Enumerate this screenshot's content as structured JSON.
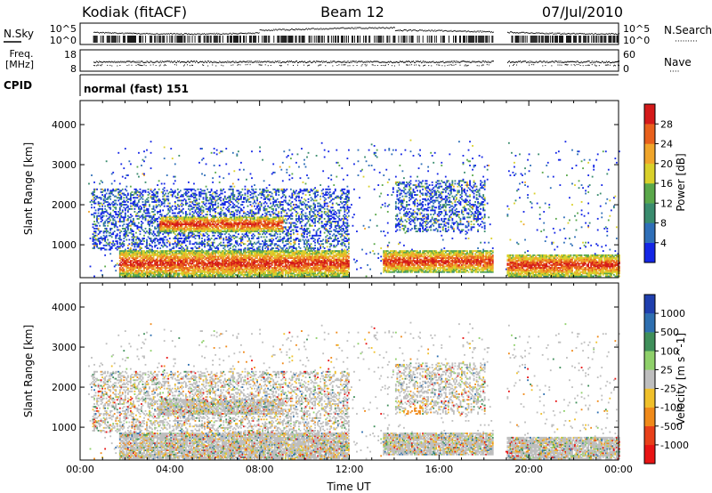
{
  "header": {
    "site": "Kodiak (fitACF)",
    "beam": "Beam 12",
    "date": "07/Jul/2010"
  },
  "strip_labels": {
    "nsky": "N.Sky",
    "nsearch": "N.Search",
    "nsearch_dots": "·········",
    "freq_line1": "Freq.",
    "freq_line2": "[MHz]",
    "nave": "Nave",
    "nave_dots": "····",
    "cpid": "CPID",
    "cpid_value": "normal (fast) 151"
  },
  "strip_ticks": {
    "nsky_left": [
      "10^5",
      "10^0"
    ],
    "nsky_right": [
      "10^5",
      "10^0"
    ],
    "freq_left": [
      "18",
      "8"
    ],
    "nave_right": [
      "60",
      "0"
    ]
  },
  "chart_data": [
    {
      "type": "heatmap",
      "title": "",
      "ylabel": "Slant Range [km]",
      "xlabel": "",
      "ylim": [
        180,
        4600
      ],
      "yticks": [
        1000,
        2000,
        3000,
        4000
      ],
      "xlim": [
        "00:00",
        "24:00"
      ],
      "colorbar": {
        "label": "Power [dB]",
        "ticks": [
          "4",
          "8",
          "12",
          "16",
          "20",
          "24",
          "28"
        ],
        "colors": [
          "#1426e6",
          "#2f6fb8",
          "#3a8c6e",
          "#5aa84a",
          "#d9d02a",
          "#f0a52a",
          "#e8601c",
          "#d41a1a"
        ]
      },
      "echo_regions": [
        {
          "t0": 1.7,
          "t1": 12.0,
          "r0": 200,
          "r1": 850,
          "level": "strong"
        },
        {
          "t0": 3.5,
          "t1": 9.0,
          "r0": 1300,
          "r1": 1700,
          "level": "strong"
        },
        {
          "t0": 13.5,
          "t1": 18.4,
          "r0": 300,
          "r1": 850,
          "level": "strong"
        },
        {
          "t0": 19.0,
          "t1": 24.0,
          "r0": 200,
          "r1": 750,
          "level": "strong"
        },
        {
          "t0": 14.0,
          "t1": 18.0,
          "r0": 1300,
          "r1": 2600,
          "level": "weak"
        },
        {
          "t0": 0.5,
          "t1": 12.0,
          "r0": 850,
          "r1": 2400,
          "level": "weak"
        }
      ]
    },
    {
      "type": "heatmap",
      "title": "",
      "ylabel": "Slant Range [km]",
      "xlabel": "Time UT",
      "ylim": [
        180,
        4600
      ],
      "yticks": [
        1000,
        2000,
        3000,
        4000
      ],
      "xlim": [
        "00:00",
        "24:00"
      ],
      "xticks": [
        "00:00",
        "04:00",
        "08:00",
        "12:00",
        "16:00",
        "20:00",
        "00:00"
      ],
      "colorbar": {
        "label": "Velocity [m s^-1]",
        "ticks": [
          "1000",
          "500",
          "100",
          "25",
          "-25",
          "-100",
          "-500",
          "-1000"
        ],
        "colors": [
          "#1f3fae",
          "#2e6fb0",
          "#3f8f5a",
          "#8fd06a",
          "#bebebe",
          "#f0c02a",
          "#f08a1a",
          "#e8401a",
          "#e81414"
        ]
      }
    }
  ]
}
